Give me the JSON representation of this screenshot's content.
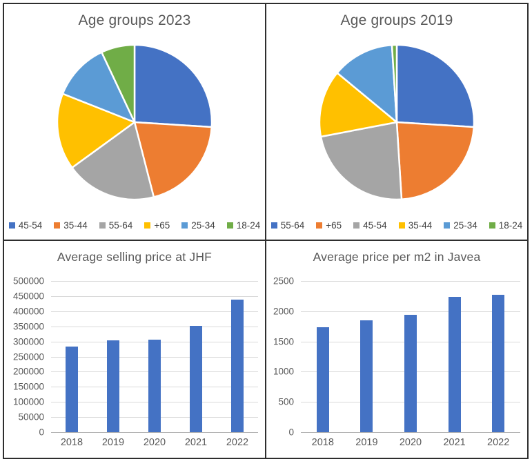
{
  "colors": {
    "blue": "#4472C4",
    "orange": "#ED7D31",
    "gray": "#A5A5A5",
    "yellow": "#FFC000",
    "light_blue": "#5B9BD5",
    "green": "#70AD47",
    "gridline": "#D9D9D9",
    "axis_text": "#595959",
    "panel_border": "#2E2E2E"
  },
  "chart_data": [
    {
      "type": "pie",
      "title": "Age groups 2023",
      "legend_position": "bottom",
      "start_angle_deg": 0,
      "slices": [
        {
          "label": "45-54",
          "pct": 26,
          "color": "#4472C4"
        },
        {
          "label": "35-44",
          "pct": 20,
          "color": "#ED7D31"
        },
        {
          "label": "55-64",
          "pct": 19,
          "color": "#A5A5A5"
        },
        {
          "label": "+65",
          "pct": 16,
          "color": "#FFC000"
        },
        {
          "label": "25-34",
          "pct": 12,
          "color": "#5B9BD5"
        },
        {
          "label": "18-24",
          "pct": 7,
          "color": "#70AD47"
        }
      ]
    },
    {
      "type": "pie",
      "title": "Age groups 2019",
      "legend_position": "bottom",
      "start_angle_deg": 0,
      "slices": [
        {
          "label": "55-64",
          "pct": 26,
          "color": "#4472C4"
        },
        {
          "label": "+65",
          "pct": 23,
          "color": "#ED7D31"
        },
        {
          "label": "45-54",
          "pct": 23,
          "color": "#A5A5A5"
        },
        {
          "label": "35-44",
          "pct": 14,
          "color": "#FFC000"
        },
        {
          "label": "25-34",
          "pct": 13,
          "color": "#5B9BD5"
        },
        {
          "label": "18-24",
          "pct": 1,
          "color": "#70AD47"
        }
      ]
    },
    {
      "type": "bar",
      "title": "Average selling price at JHF",
      "categories": [
        "2018",
        "2019",
        "2020",
        "2021",
        "2022"
      ],
      "values": [
        282000,
        303000,
        307000,
        352000,
        438000
      ],
      "ylim": [
        0,
        500000
      ],
      "ytick_step": 50000,
      "bar_color": "#4472C4",
      "grid": true,
      "legend_position": "none"
    },
    {
      "type": "bar",
      "title": "Average price per m2 in Javea",
      "categories": [
        "2018",
        "2019",
        "2020",
        "2021",
        "2022"
      ],
      "values": [
        1740,
        1850,
        1940,
        2240,
        2270
      ],
      "ylim": [
        0,
        2500
      ],
      "ytick_step": 500,
      "bar_color": "#4472C4",
      "grid": true,
      "legend_position": "none"
    }
  ]
}
